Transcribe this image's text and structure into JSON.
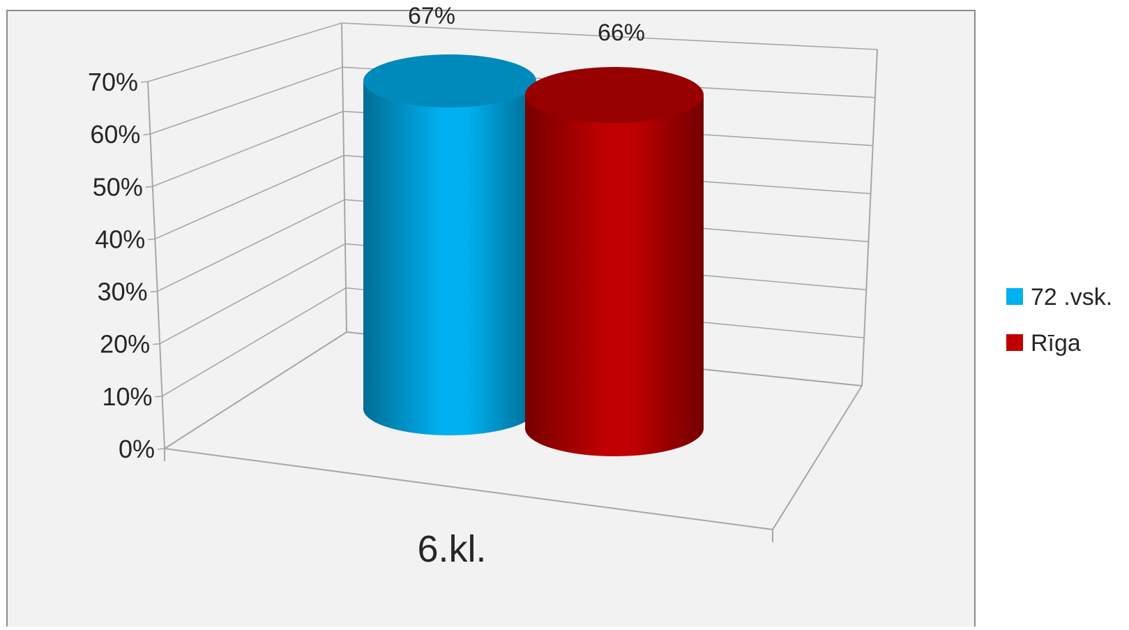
{
  "colors": {
    "background": "#f2f2f2",
    "frame": "#8c8c8c",
    "grid": "#a6a6a6",
    "text": "#262626",
    "series_1": "#00b0f0",
    "series_2": "#c00000"
  },
  "chart_data": {
    "type": "bar",
    "style": "3d-cylinder",
    "categories": [
      "6.kl."
    ],
    "series": [
      {
        "name": "72 .vsk.",
        "values": [
          67
        ],
        "color": "#00b0f0"
      },
      {
        "name": "Rīga",
        "values": [
          66
        ],
        "color": "#c00000"
      }
    ],
    "data_labels": [
      "67%",
      "66%"
    ],
    "ylim": [
      0,
      70
    ],
    "yticks": [
      0,
      10,
      20,
      30,
      40,
      50,
      60,
      70
    ],
    "ytick_labels": [
      "0%",
      "10%",
      "20%",
      "30%",
      "40%",
      "50%",
      "60%",
      "70%"
    ],
    "grid": true,
    "legend": "right",
    "title": "",
    "xlabel": "",
    "ylabel": ""
  }
}
